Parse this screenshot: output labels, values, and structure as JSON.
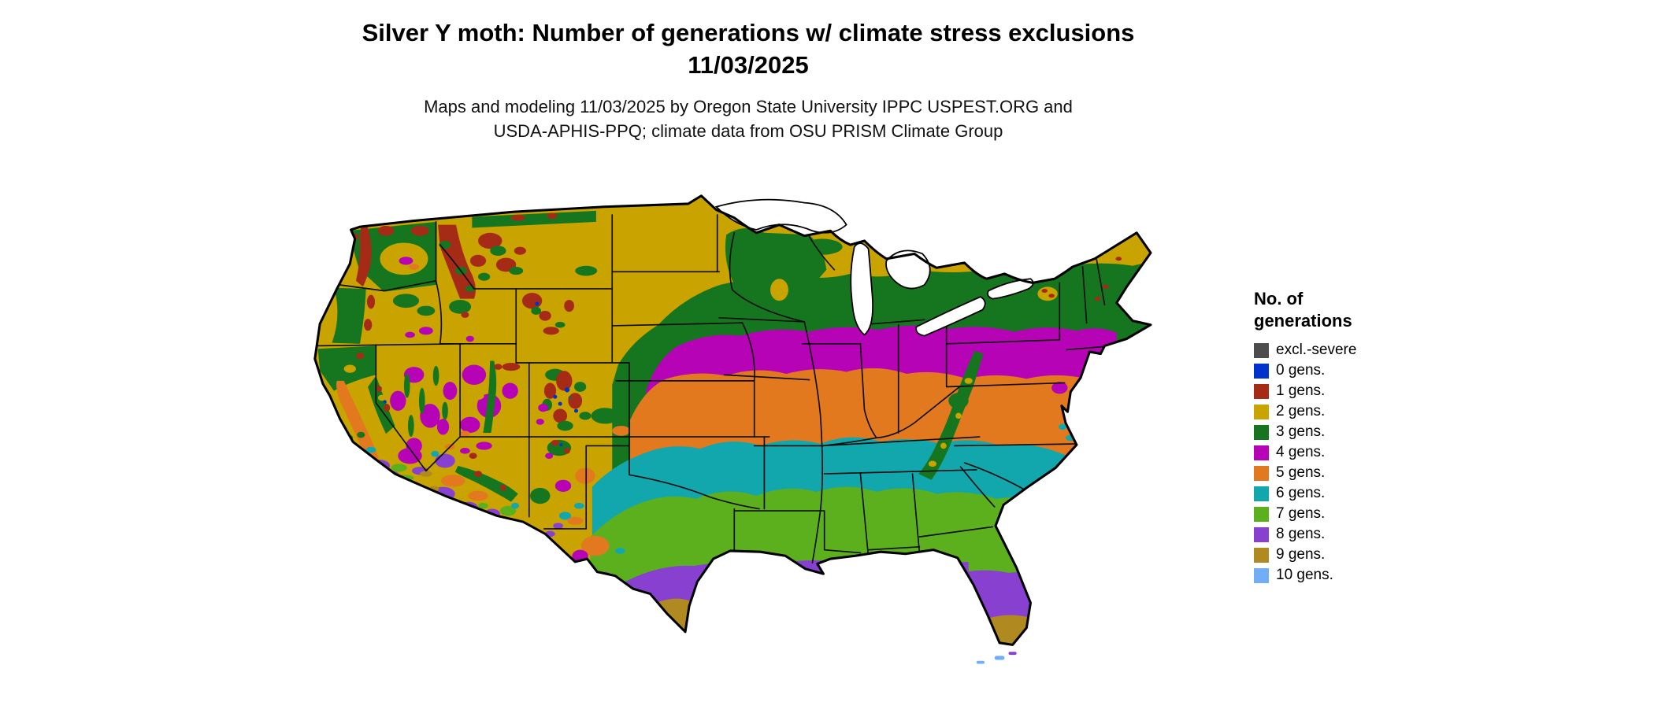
{
  "header": {
    "title_line1": "Silver Y moth: Number of generations w/ climate stress exclusions",
    "title_line2": "11/03/2025",
    "subtitle_line1": "Maps and modeling 11/03/2025 by Oregon State University IPPC USPEST.ORG and",
    "subtitle_line2": "USDA-APHIS-PPQ; climate data from OSU PRISM Climate Group"
  },
  "legend": {
    "title_line1": "No. of",
    "title_line2": "generations",
    "items": [
      {
        "label": "excl.-severe",
        "color": "#4d4d4d"
      },
      {
        "label": "0 gens.",
        "color": "#0033cc"
      },
      {
        "label": "1 gens.",
        "color": "#a62b17"
      },
      {
        "label": "2 gens.",
        "color": "#c9a400"
      },
      {
        "label": "3 gens.",
        "color": "#15761f"
      },
      {
        "label": "4 gens.",
        "color": "#b503b5"
      },
      {
        "label": "5 gens.",
        "color": "#e2791f"
      },
      {
        "label": "6 gens.",
        "color": "#12a7ad"
      },
      {
        "label": "7 gens.",
        "color": "#5cb01e"
      },
      {
        "label": "8 gens.",
        "color": "#8840d0"
      },
      {
        "label": "9 gens.",
        "color": "#b08a20"
      },
      {
        "label": "10 gens.",
        "color": "#72aef5"
      }
    ]
  },
  "map": {
    "region": "Contiguous United States",
    "kind": "raster choropleth of moth generations"
  }
}
